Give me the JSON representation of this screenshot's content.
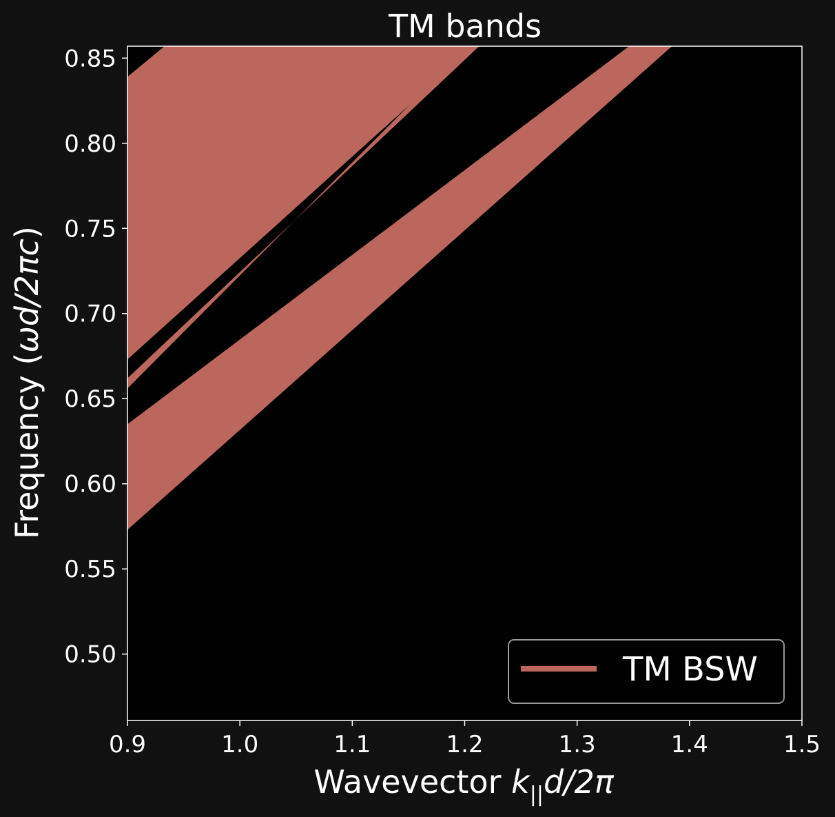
{
  "chart_data": {
    "type": "area",
    "title": "TM bands",
    "xlabel": {
      "prefix": "Wavevector ",
      "var": "k",
      "sub": "||",
      "suffix": "d/2π"
    },
    "ylabel": {
      "prefix": "Frequency (",
      "math": "ωd/2πc",
      "suffix": ")"
    },
    "xlim": [
      0.9,
      1.5
    ],
    "ylim": [
      0.461,
      0.857
    ],
    "xticks": [
      "0.9",
      "1.0",
      "1.1",
      "1.2",
      "1.3",
      "1.4",
      "1.5"
    ],
    "yticks": [
      "0.50",
      "0.55",
      "0.60",
      "0.65",
      "0.70",
      "0.75",
      "0.80",
      "0.85"
    ],
    "grid": false,
    "legend": {
      "placement": "lower-right",
      "entries": [
        {
          "label": "TM BSW",
          "color": "#bb675d"
        }
      ]
    },
    "colors": {
      "band": "#bb675d",
      "plot_background": "#000000",
      "figure_background": "#111111",
      "text": "#ffffff",
      "spines": "#ffffff"
    },
    "series": [
      {
        "kind": "band",
        "lower": [
          [
            0.9,
            0.673
          ],
          [
            1.2089,
            0.857
          ]
        ],
        "upper": [
          [
            0.9,
            0.839
          ],
          [
            0.933,
            0.857
          ],
          [
            1.2089,
            0.857
          ]
        ]
      },
      {
        "kind": "band",
        "lower": [
          [
            0.9,
            0.656
          ],
          [
            1.2029,
            0.857
          ]
        ],
        "upper": [
          [
            0.9,
            0.662
          ],
          [
            1.2129,
            0.857
          ]
        ]
      },
      {
        "kind": "band",
        "lower": [
          [
            0.9,
            0.573
          ],
          [
            1.3844,
            0.857
          ]
        ],
        "upper": [
          [
            0.9,
            0.635
          ],
          [
            1.3463,
            0.857
          ]
        ]
      }
    ]
  }
}
